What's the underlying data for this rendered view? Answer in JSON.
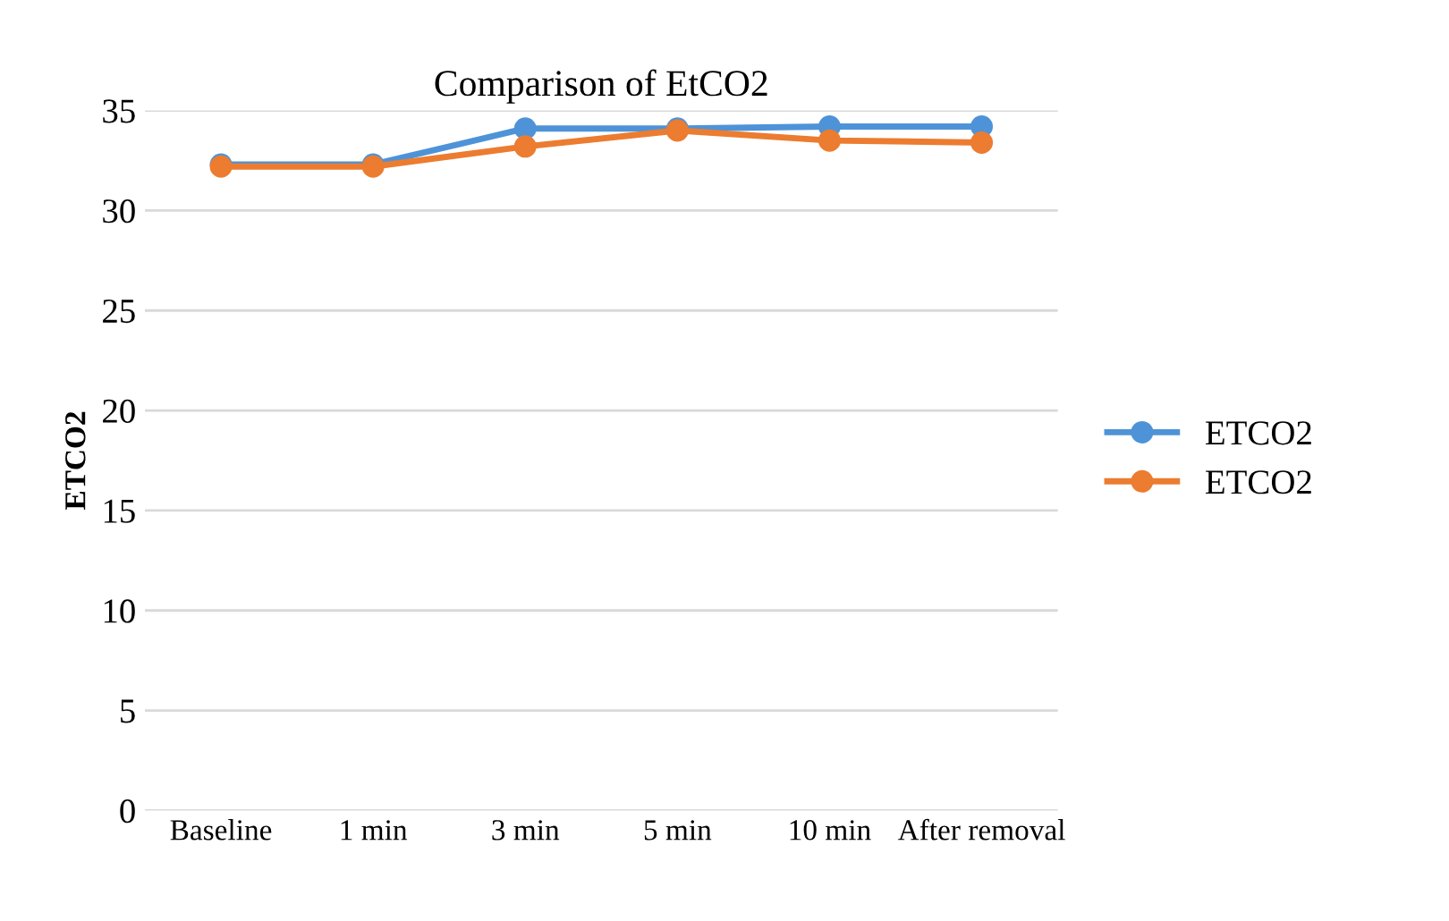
{
  "chart_data": {
    "type": "line",
    "title": "Comparison of EtCO2",
    "ylabel": "ETCO2",
    "categories": [
      "Baseline",
      "1 min",
      "3 min",
      "5 min",
      "10 min",
      "After removal"
    ],
    "series": [
      {
        "name": "ETCO2",
        "color": "#4e93d8",
        "values": [
          32.3,
          32.3,
          34.1,
          34.1,
          34.2,
          34.2
        ]
      },
      {
        "name": "ETCO2",
        "color": "#ec7c30",
        "values": [
          32.2,
          32.2,
          33.2,
          34.0,
          33.5,
          33.4
        ]
      }
    ],
    "ylim": [
      0,
      35
    ],
    "yticks": [
      0,
      5,
      10,
      15,
      20,
      25,
      30,
      35
    ],
    "grid": "y",
    "legend": "right",
    "marker": "circle",
    "line_style": "solid"
  }
}
